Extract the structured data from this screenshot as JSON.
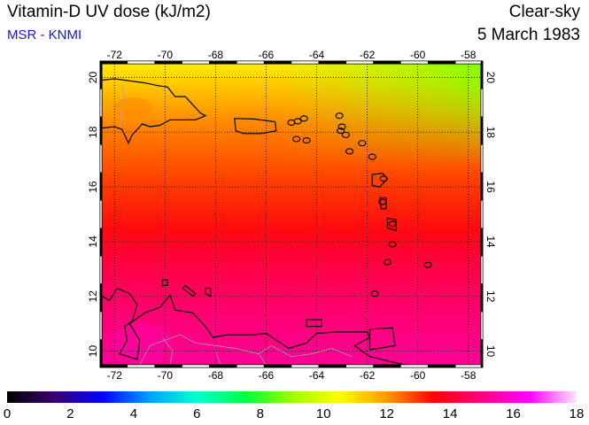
{
  "header": {
    "title": "Vitamin-D UV dose (kJ/m2)",
    "subtitle": "MSR - KNMI",
    "sky": "Clear-sky",
    "date": "5 March 1983"
  },
  "map": {
    "lon_range": [
      -72.5,
      -57.5
    ],
    "lat_range": [
      9.5,
      20.5
    ],
    "lon_ticks": [
      -72,
      -70,
      -68,
      -66,
      -64,
      -62,
      -60,
      -58
    ],
    "lat_ticks": [
      10,
      12,
      14,
      16,
      18,
      20
    ],
    "lon_labels": [
      "-72",
      "-70",
      "-68",
      "-66",
      "-64",
      "-62",
      "-60",
      "-58"
    ],
    "lat_labels": [
      "10",
      "12",
      "14",
      "16",
      "18",
      "20"
    ],
    "gridlines": "dotted",
    "coastline_color": "#000000",
    "border_color": "#aaaaaa"
  },
  "colorbar": {
    "min": 0,
    "max": 18,
    "tick_labels": [
      "0",
      "2",
      "4",
      "6",
      "8",
      "10",
      "12",
      "14",
      "16",
      "18"
    ],
    "colors": [
      "#000000",
      "#3a006e",
      "#0000ff",
      "#00a0ff",
      "#00ffd0",
      "#00ff40",
      "#9cff00",
      "#ffff00",
      "#ff9900",
      "#ff0000",
      "#ff0080",
      "#ff00ff",
      "#ffe6ff"
    ]
  }
}
